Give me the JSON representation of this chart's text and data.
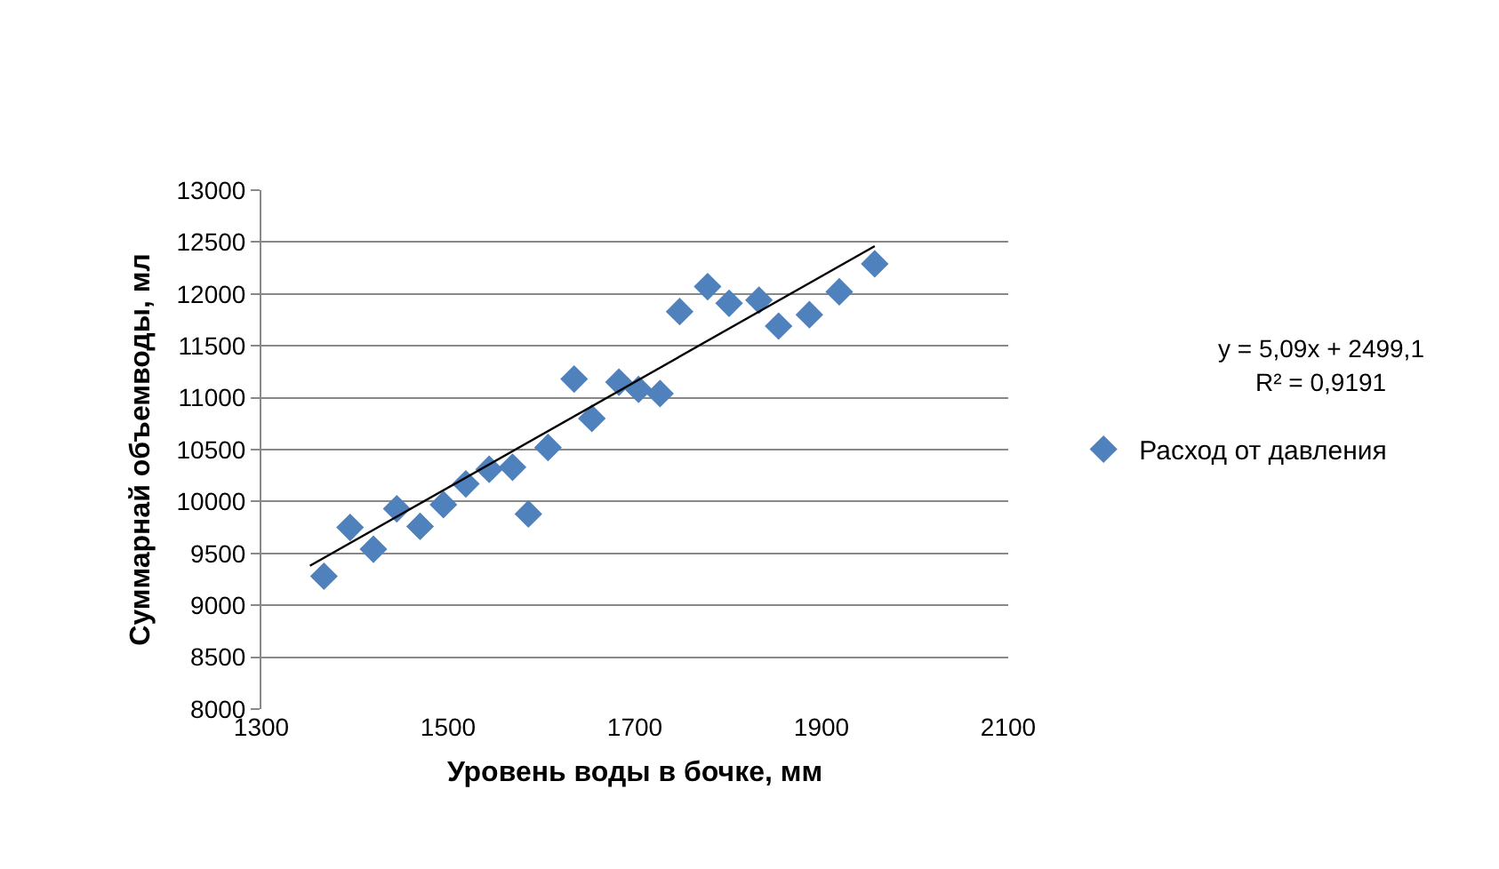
{
  "chart_data": {
    "type": "scatter",
    "xlabel": "Уровень воды в бочке, мм",
    "ylabel": "Суммарнай объемводы, мл",
    "xlim": [
      1300,
      2100
    ],
    "xticks": [
      1300,
      1500,
      1700,
      1900,
      2100
    ],
    "ylim": [
      8000,
      13000
    ],
    "yticks": [
      8000,
      8500,
      9000,
      9500,
      10000,
      10500,
      11000,
      11500,
      12000,
      12500,
      13000
    ],
    "grid": "y",
    "legend": "right",
    "annotations": [
      "y = 5,09x + 2499,1",
      "R² = 0,9191"
    ],
    "series": [
      {
        "name": "Расход от давления",
        "color": "#4f81bd",
        "marker": "diamond",
        "x": [
          1367,
          1395,
          1420,
          1445,
          1470,
          1495,
          1519,
          1544,
          1569,
          1586,
          1607,
          1635,
          1654,
          1683,
          1704,
          1727,
          1748,
          1778,
          1801,
          1833,
          1854,
          1887,
          1919,
          1957
        ],
        "values": [
          9280,
          9750,
          9540,
          9930,
          9760,
          9970,
          10170,
          10310,
          10330,
          9880,
          10520,
          11180,
          10800,
          11150,
          11080,
          11040,
          11830,
          12070,
          11910,
          11940,
          11690,
          11800,
          12020,
          12290
        ]
      },
      {
        "type": "line",
        "color": "#000000",
        "marker": "none",
        "x": [
          1352,
          1957
        ],
        "values": [
          9380,
          12460
        ]
      }
    ]
  }
}
